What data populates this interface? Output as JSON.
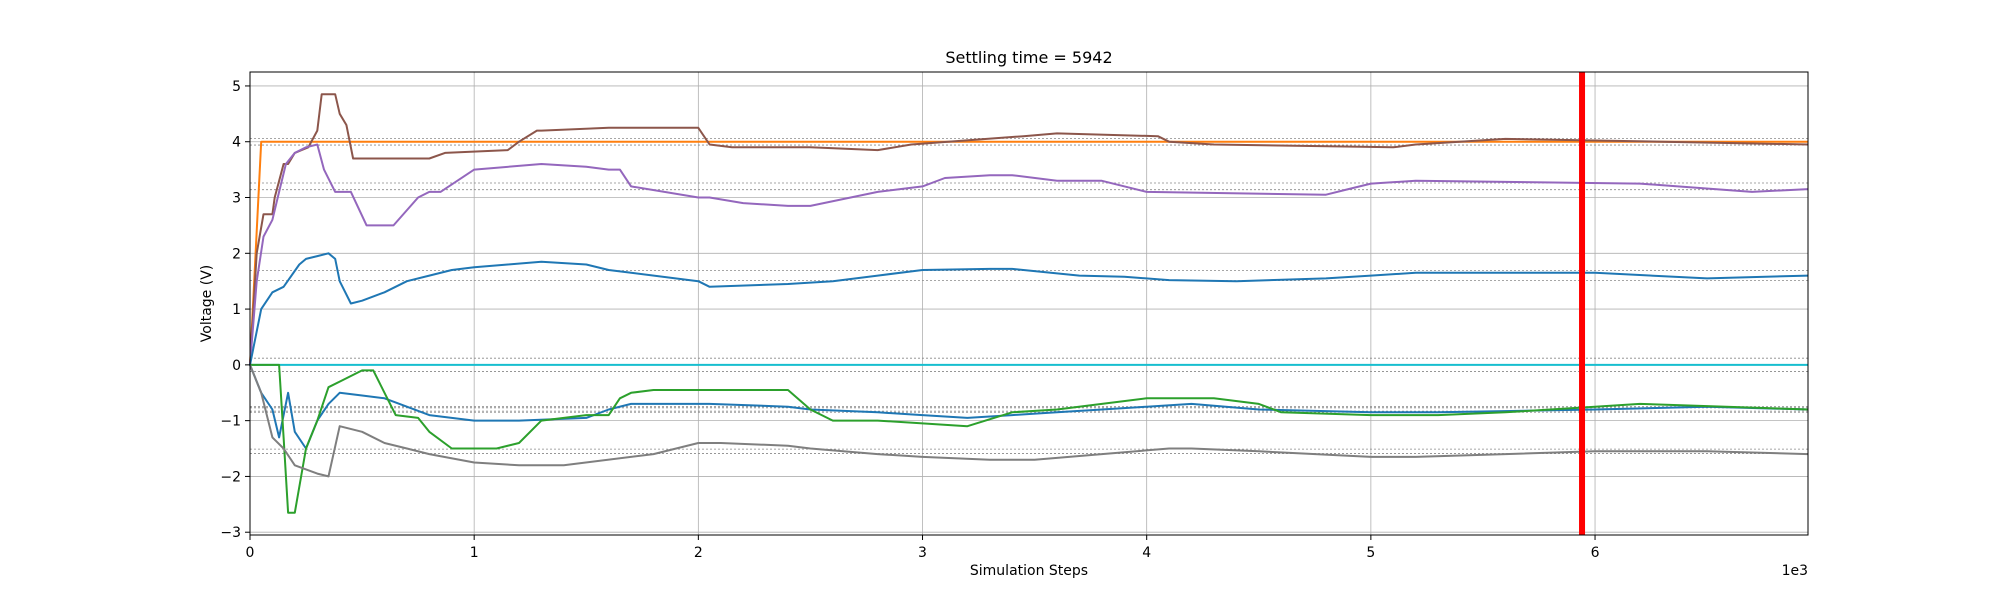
{
  "chart_data": {
    "type": "line",
    "title": "Settling time = 5942",
    "xlabel": "Simulation Steps",
    "ylabel": "Voltage (V)",
    "x_offset_label": "1e3",
    "xlim": [
      0,
      6950
    ],
    "ylim": [
      -3.05,
      5.25
    ],
    "x_ticks": [
      0,
      1000,
      2000,
      3000,
      4000,
      5000,
      6000
    ],
    "x_tick_labels": [
      "0",
      "1",
      "2",
      "3",
      "4",
      "5",
      "6"
    ],
    "y_ticks": [
      -3,
      -2,
      -1,
      0,
      1,
      2,
      3,
      4,
      5
    ],
    "y_tick_labels": [
      "−3",
      "−2",
      "−1",
      "0",
      "1",
      "2",
      "3",
      "4",
      "5"
    ],
    "grid": true,
    "settling_time": 5942,
    "settling_line_color": "#ff0000",
    "reference_lines": [
      {
        "value": 4.0,
        "band": 0.06,
        "color": "#ff7f0e"
      },
      {
        "value": 3.2,
        "band": 0.06,
        "color": "#9467bd"
      },
      {
        "value": 1.6,
        "band": 0.09,
        "color": "#1f77b4"
      },
      {
        "value": 0.0,
        "band": 0.12,
        "color": "#17becf"
      },
      {
        "value": -0.8,
        "band": 0.03,
        "color": "#1f77b4"
      },
      {
        "value": -0.8,
        "band": 0.05,
        "color": "#2ca02c"
      },
      {
        "value": -1.55,
        "band": 0.04,
        "color": "#7f7f7f"
      }
    ],
    "series": [
      {
        "color": "#ff7f0e",
        "x": [
          0,
          50,
          6950
        ],
        "y": [
          0,
          4.0,
          4.0
        ]
      },
      {
        "color": "#17becf",
        "x": [
          0,
          6950
        ],
        "y": [
          0,
          0
        ]
      },
      {
        "color": "#8c564b",
        "x": [
          0,
          30,
          60,
          100,
          110,
          150,
          170,
          200,
          230,
          260,
          300,
          320,
          380,
          400,
          430,
          460,
          800,
          870,
          1150,
          1200,
          1280,
          1300,
          1600,
          1650,
          2000,
          2050,
          2150,
          2500,
          2800,
          2950,
          3450,
          3600,
          4050,
          4100,
          4300,
          5100,
          5200,
          5600,
          6300,
          6950
        ],
        "y": [
          0,
          2.0,
          2.7,
          2.7,
          3.0,
          3.6,
          3.6,
          3.8,
          3.85,
          3.9,
          4.2,
          4.85,
          4.85,
          4.5,
          4.3,
          3.7,
          3.7,
          3.8,
          3.85,
          4.0,
          4.2,
          4.2,
          4.25,
          4.25,
          4.25,
          3.95,
          3.9,
          3.9,
          3.85,
          3.95,
          4.1,
          4.15,
          4.1,
          4.0,
          3.95,
          3.9,
          3.95,
          4.05,
          4.0,
          3.95
        ]
      },
      {
        "color": "#9467bd",
        "x": [
          0,
          30,
          60,
          100,
          130,
          160,
          200,
          250,
          300,
          330,
          380,
          450,
          520,
          560,
          640,
          750,
          800,
          850,
          1000,
          1300,
          1500,
          1600,
          1650,
          1700,
          2000,
          2050,
          2200,
          2400,
          2500,
          2800,
          3000,
          3100,
          3300,
          3400,
          3600,
          3800,
          4000,
          4800,
          4900,
          5000,
          5200,
          6200,
          6700,
          6950
        ],
        "y": [
          0,
          1.5,
          2.3,
          2.6,
          3.1,
          3.6,
          3.8,
          3.9,
          3.95,
          3.5,
          3.1,
          3.1,
          2.5,
          2.5,
          2.5,
          3.0,
          3.1,
          3.1,
          3.5,
          3.6,
          3.55,
          3.5,
          3.5,
          3.2,
          3.0,
          3.0,
          2.9,
          2.85,
          2.85,
          3.1,
          3.2,
          3.35,
          3.4,
          3.4,
          3.3,
          3.3,
          3.1,
          3.05,
          3.15,
          3.25,
          3.3,
          3.25,
          3.1,
          3.15
        ]
      },
      {
        "color": "#1f77b4",
        "x": [
          0,
          50,
          100,
          150,
          220,
          250,
          300,
          350,
          380,
          400,
          450,
          500,
          600,
          700,
          800,
          900,
          1000,
          1150,
          1300,
          1500,
          1600,
          1700,
          2000,
          2050,
          2400,
          2600,
          2800,
          3000,
          3300,
          3400,
          3500,
          3700,
          3900,
          4100,
          4400,
          4800,
          5000,
          5200,
          6000,
          6500,
          6950
        ],
        "y": [
          0,
          1.0,
          1.3,
          1.4,
          1.8,
          1.9,
          1.95,
          2.0,
          1.9,
          1.5,
          1.1,
          1.15,
          1.3,
          1.5,
          1.6,
          1.7,
          1.75,
          1.8,
          1.85,
          1.8,
          1.7,
          1.65,
          1.5,
          1.4,
          1.45,
          1.5,
          1.6,
          1.7,
          1.72,
          1.72,
          1.68,
          1.6,
          1.58,
          1.52,
          1.5,
          1.55,
          1.6,
          1.65,
          1.65,
          1.55,
          1.6
        ]
      },
      {
        "color": "#1f77b4",
        "x": [
          0,
          50,
          100,
          130,
          170,
          200,
          250,
          300,
          350,
          400,
          500,
          600,
          800,
          1000,
          1200,
          1500,
          1600,
          1700,
          2000,
          2050,
          2400,
          2500,
          2800,
          3000,
          3200,
          3400,
          3600,
          3800,
          4000,
          4200,
          4500,
          5000,
          5300,
          6000,
          6500,
          6950
        ],
        "y": [
          0,
          -0.5,
          -0.8,
          -1.3,
          -0.5,
          -1.2,
          -1.5,
          -1.0,
          -0.7,
          -0.5,
          -0.55,
          -0.6,
          -0.9,
          -1.0,
          -1.0,
          -0.95,
          -0.8,
          -0.7,
          -0.7,
          -0.7,
          -0.75,
          -0.8,
          -0.85,
          -0.9,
          -0.95,
          -0.9,
          -0.85,
          -0.8,
          -0.75,
          -0.7,
          -0.8,
          -0.85,
          -0.85,
          -0.8,
          -0.75,
          -0.8
        ]
      },
      {
        "color": "#2ca02c",
        "x": [
          0,
          130,
          150,
          170,
          200,
          250,
          300,
          350,
          400,
          450,
          500,
          550,
          600,
          650,
          750,
          800,
          900,
          1100,
          1200,
          1300,
          1500,
          1600,
          1650,
          1700,
          1800,
          2000,
          2050,
          2400,
          2500,
          2600,
          2800,
          3000,
          3200,
          3400,
          3600,
          3800,
          4000,
          4300,
          4500,
          4600,
          5000,
          5300,
          5600,
          6000,
          6200,
          6950
        ],
        "y": [
          0,
          0,
          -1.3,
          -2.65,
          -2.65,
          -1.5,
          -1.0,
          -0.4,
          -0.3,
          -0.2,
          -0.1,
          -0.1,
          -0.5,
          -0.9,
          -0.95,
          -1.2,
          -1.5,
          -1.5,
          -1.4,
          -1.0,
          -0.9,
          -0.9,
          -0.6,
          -0.5,
          -0.45,
          -0.45,
          -0.45,
          -0.45,
          -0.8,
          -1.0,
          -1.0,
          -1.05,
          -1.1,
          -0.85,
          -0.8,
          -0.7,
          -0.6,
          -0.6,
          -0.7,
          -0.85,
          -0.9,
          -0.9,
          -0.85,
          -0.75,
          -0.7,
          -0.8
        ]
      },
      {
        "color": "#7f7f7f",
        "x": [
          0,
          50,
          100,
          150,
          200,
          300,
          350,
          400,
          500,
          600,
          700,
          800,
          1000,
          1200,
          1400,
          1800,
          2000,
          2100,
          2400,
          2500,
          2800,
          3000,
          3300,
          3500,
          3800,
          4100,
          4200,
          4500,
          5000,
          5200,
          5600,
          6000,
          6500,
          6950
        ],
        "y": [
          0,
          -0.5,
          -1.3,
          -1.5,
          -1.8,
          -1.95,
          -2.0,
          -1.1,
          -1.2,
          -1.4,
          -1.5,
          -1.6,
          -1.75,
          -1.8,
          -1.8,
          -1.6,
          -1.4,
          -1.4,
          -1.45,
          -1.5,
          -1.6,
          -1.65,
          -1.7,
          -1.7,
          -1.6,
          -1.5,
          -1.5,
          -1.55,
          -1.65,
          -1.65,
          -1.6,
          -1.55,
          -1.55,
          -1.6
        ]
      }
    ]
  }
}
